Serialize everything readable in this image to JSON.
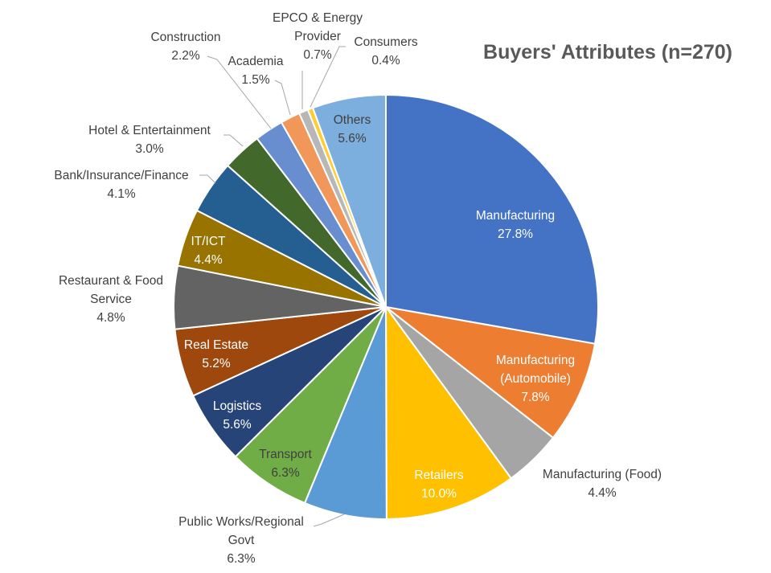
{
  "chart_data": {
    "type": "pie",
    "title": "Buyers' Attributes (n=270)",
    "categories": [
      "Manufacturing",
      "Manufacturing (Automobile)",
      "Manufacturing (Food)",
      "Retailers",
      "Public Works/Regional Govt",
      "Transport",
      "Logistics",
      "Real Estate",
      "Restaurant & Food Service",
      "IT/ICT",
      "Bank/Insurance/Finance",
      "Hotel & Entertainment",
      "Construction",
      "Academia",
      "EPCO & Energy Provider",
      "Consumers",
      "Others"
    ],
    "label_lines": [
      [
        "Manufacturing"
      ],
      [
        "Manufacturing",
        "(Automobile)"
      ],
      [
        "Manufacturing (Food)"
      ],
      [
        "Retailers"
      ],
      [
        "Public Works/Regional",
        "Govt"
      ],
      [
        "Transport"
      ],
      [
        "Logistics"
      ],
      [
        "Real Estate"
      ],
      [
        "Restaurant & Food",
        "Service"
      ],
      [
        "IT/ICT"
      ],
      [
        "Bank/Insurance/Finance"
      ],
      [
        "Hotel & Entertainment"
      ],
      [
        "Construction"
      ],
      [
        "Academia"
      ],
      [
        "EPCO & Energy",
        "Provider"
      ],
      [
        "Consumers"
      ],
      [
        "Others"
      ]
    ],
    "values": [
      27.8,
      7.8,
      4.4,
      10.0,
      6.3,
      6.3,
      5.6,
      5.2,
      4.8,
      4.4,
      4.1,
      3.0,
      2.2,
      1.5,
      0.7,
      0.4,
      5.6
    ],
    "value_labels": [
      "27.8%",
      "7.8%",
      "4.4%",
      "10.0%",
      "6.3%",
      "6.3%",
      "5.6%",
      "5.2%",
      "4.8%",
      "4.4%",
      "4.1%",
      "3.0%",
      "2.2%",
      "1.5%",
      "0.7%",
      "0.4%",
      "5.6%"
    ],
    "colors": [
      "#4472C4",
      "#ED7D31",
      "#A5A5A5",
      "#FFC000",
      "#5B9BD5",
      "#70AD47",
      "#264478",
      "#9E480E",
      "#636363",
      "#997300",
      "#255E91",
      "#43682B",
      "#698ED0",
      "#F1975A",
      "#B7B7B7",
      "#FFCD33",
      "#7CAFDD"
    ],
    "unit": "%",
    "start": "top, clockwise",
    "legend": "none"
  }
}
